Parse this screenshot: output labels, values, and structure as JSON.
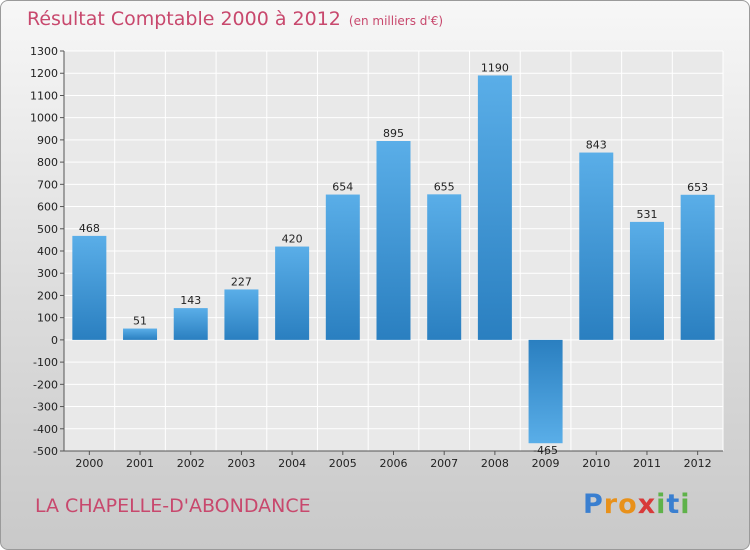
{
  "chart_data": {
    "type": "bar",
    "title": "Résultat Comptable 2000 à 2012",
    "subtitle": "(en milliers d'€)",
    "xlabel": "",
    "ylabel": "",
    "categories": [
      "2000",
      "2001",
      "2002",
      "2003",
      "2004",
      "2005",
      "2006",
      "2007",
      "2008",
      "2009",
      "2010",
      "2011",
      "2012"
    ],
    "values": [
      468,
      51,
      143,
      227,
      420,
      654,
      895,
      655,
      1190,
      -465,
      843,
      531,
      653
    ],
    "ylim": [
      -500,
      1300
    ],
    "yticks": [
      1300,
      1200,
      1100,
      1000,
      900,
      800,
      700,
      600,
      500,
      400,
      300,
      200,
      100,
      0,
      -100,
      -200,
      -300,
      -400,
      -500
    ],
    "grid": true,
    "bar_color_light": "#5aaee8",
    "bar_color_dark": "#2a7fc0"
  },
  "location_name": "LA CHAPELLE-D'ABONDANCE",
  "logo": {
    "text": "Proxiti",
    "letters": [
      "P",
      "r",
      "o",
      "x",
      "i",
      "t",
      "i"
    ],
    "colors": [
      "#3a7fd0",
      "#e8911a",
      "#e8911a",
      "#d83a3a",
      "#5fb24a",
      "#3a7fd0",
      "#5fb24a"
    ]
  },
  "colors": {
    "title": "#c8486d"
  }
}
